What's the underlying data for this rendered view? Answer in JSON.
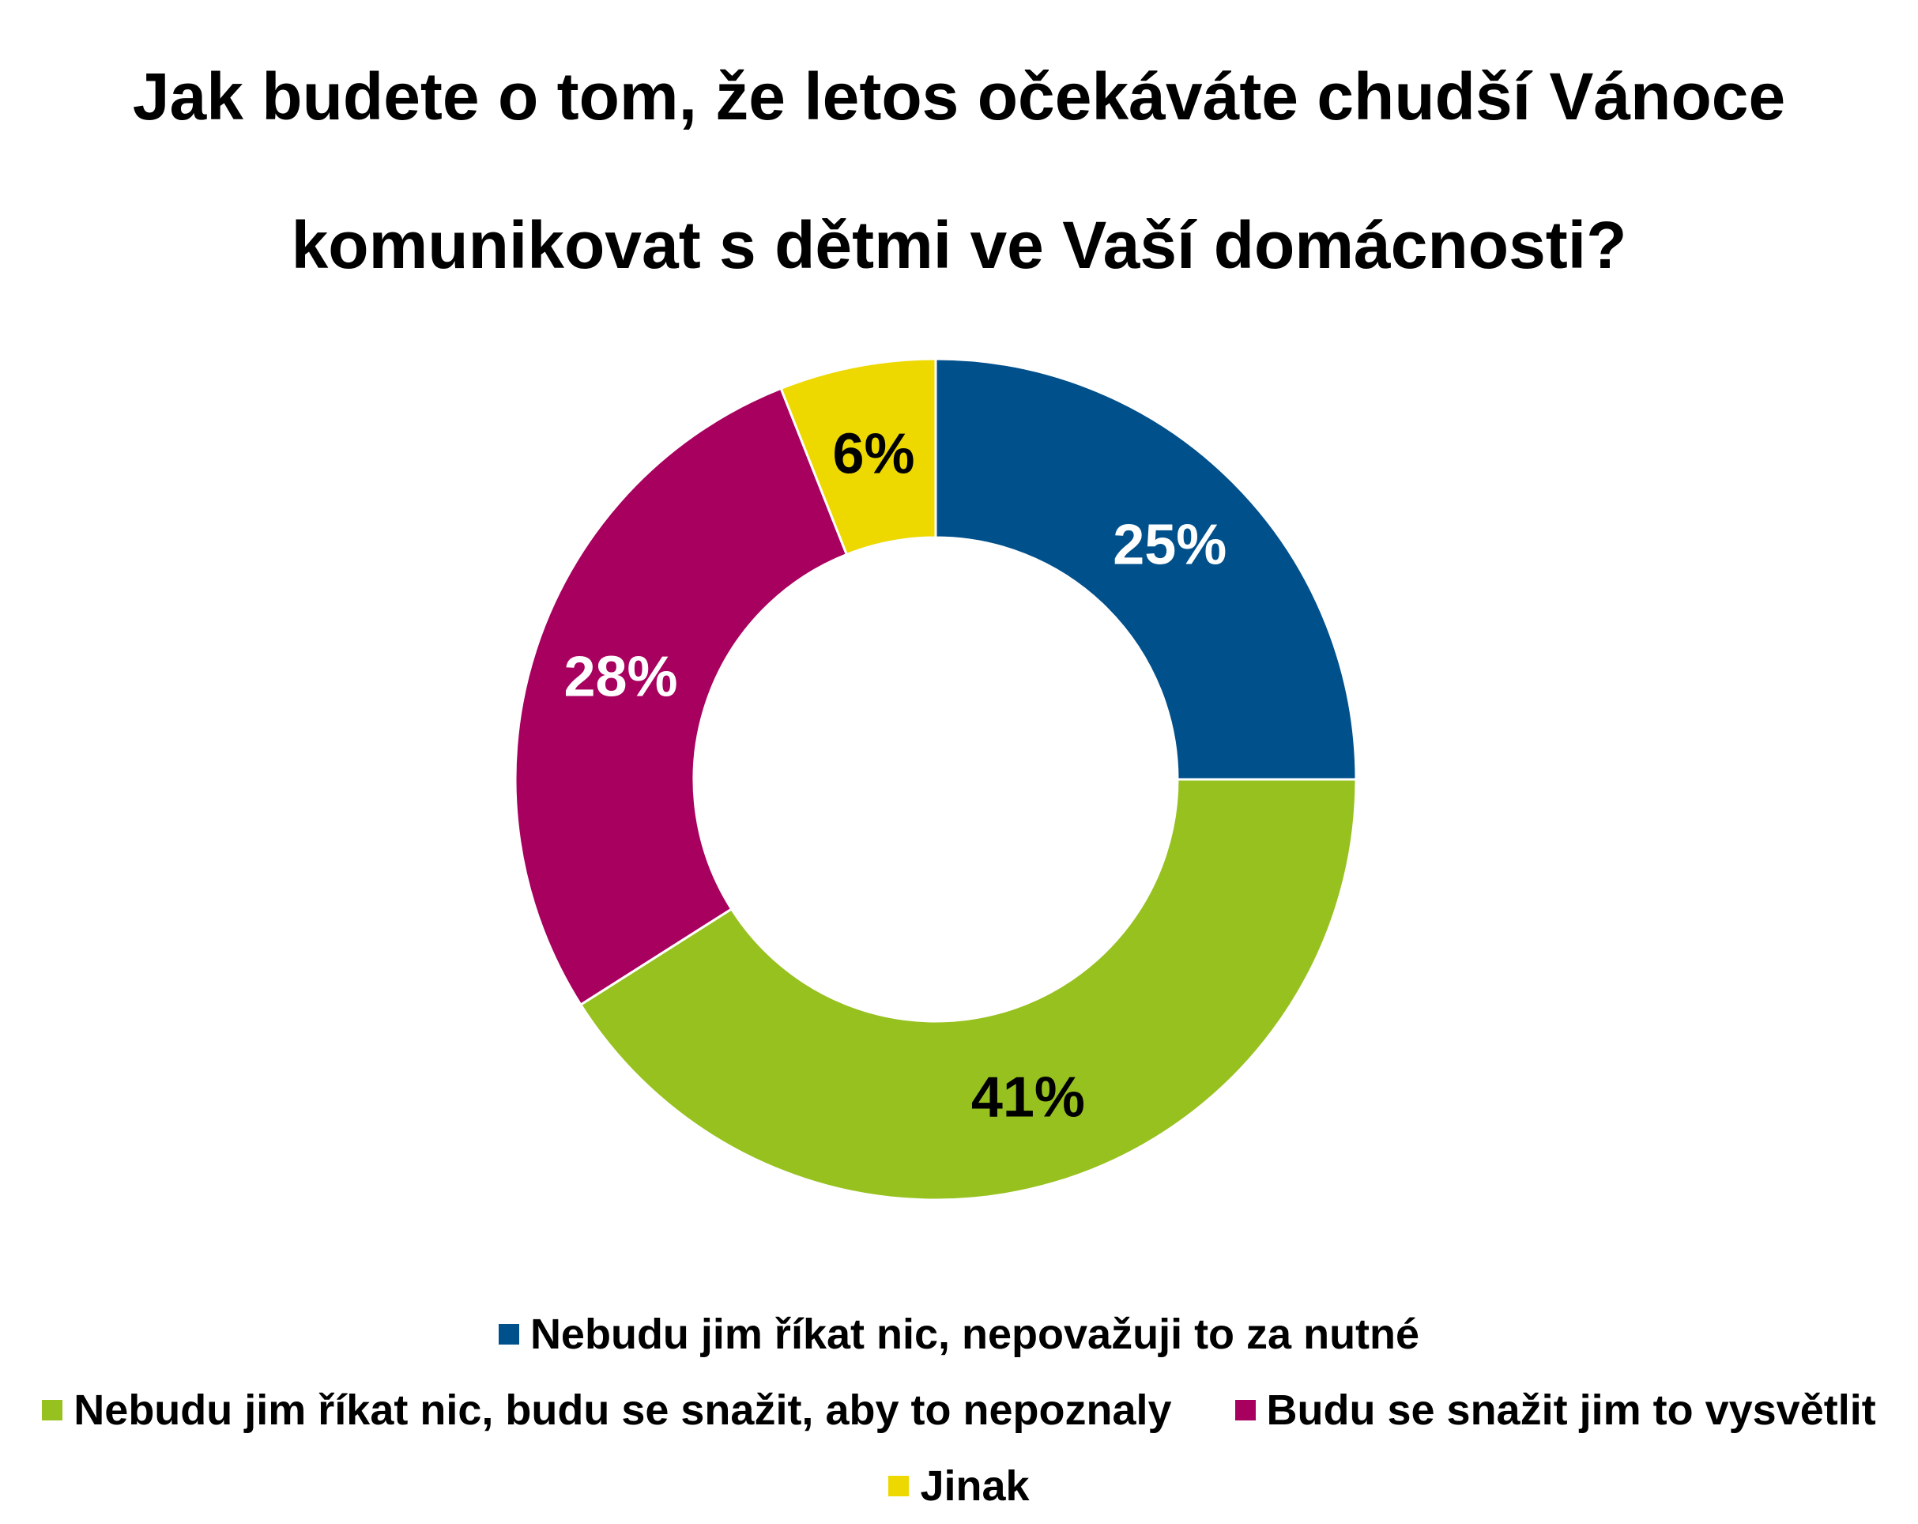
{
  "chart_data": {
    "type": "pie",
    "variant": "donut",
    "title": "Jak budete o tom, že letos očekáváte chudší Vánoce komunikovat s dětmi ve Vaší domácnosti?",
    "title_lines": [
      "Jak budete o tom, že letos očekáváte chudší Vánoce",
      "komunikovat s dětmi ve Vaší domácnosti?"
    ],
    "legend_placement": "bottom",
    "slices": [
      {
        "label": "Nebudu jim říkat nic, nepovažuji to za nutné",
        "value": 25,
        "value_label": "25%",
        "color": "#00508C",
        "label_color": "#ffffff"
      },
      {
        "label": "Nebudu jim říkat nic, budu se snažit, aby to nepoznaly",
        "value": 41,
        "value_label": "41%",
        "color": "#97C11F",
        "label_color": "#000000"
      },
      {
        "label": "Budu se snažit jim to vysvětlit",
        "value": 28,
        "value_label": "28%",
        "color": "#A8005F",
        "label_color": "#ffffff"
      },
      {
        "label": "Jinak",
        "value": 6,
        "value_label": "6%",
        "color": "#EDD800",
        "label_color": "#000000"
      }
    ]
  }
}
